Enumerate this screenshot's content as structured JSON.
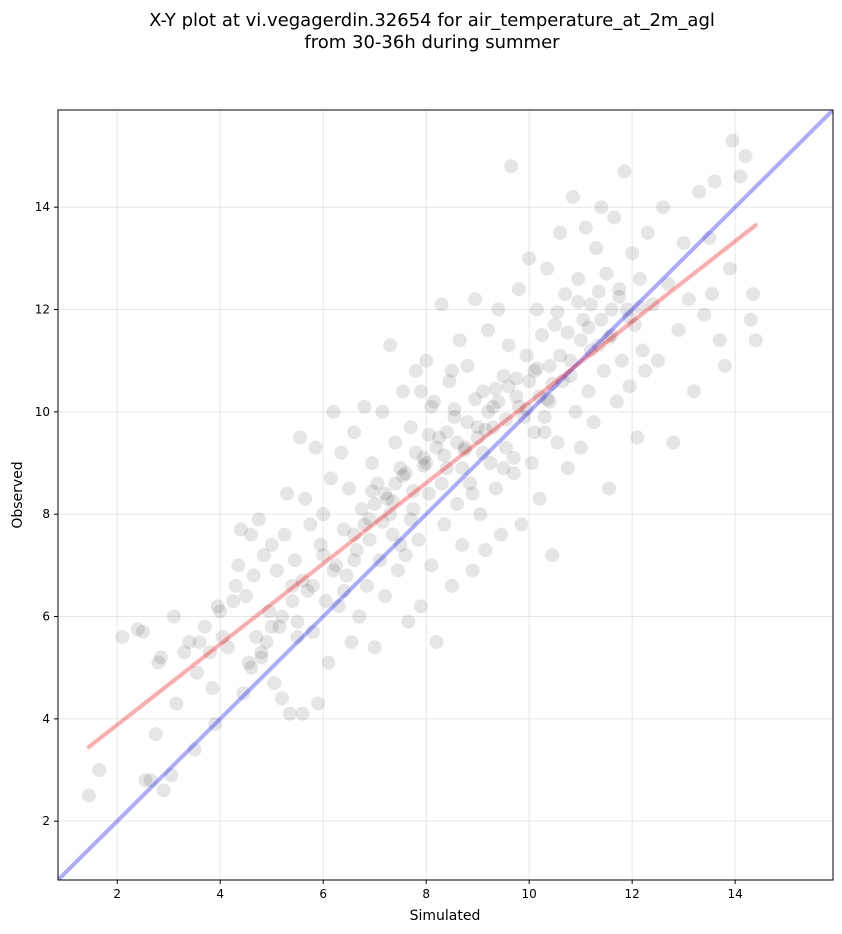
{
  "chart_data": {
    "type": "scatter",
    "title_line1": "X-Y plot at vi.vegagerdin.32654 for air_temperature_at_2m_agl",
    "title_line2": "from 30-36h during summer",
    "xlabel": "Simulated",
    "ylabel": "Observed",
    "xlim": [
      0.85,
      15.9
    ],
    "ylim": [
      0.85,
      15.9
    ],
    "xticks": [
      2,
      4,
      6,
      8,
      10,
      12,
      14
    ],
    "yticks": [
      2,
      4,
      6,
      8,
      10,
      12,
      14
    ],
    "grid": true,
    "point_color": "#000000",
    "point_opacity": 0.1,
    "identity_line": {
      "color": "#0000ff",
      "opacity": 0.33,
      "from": [
        0.85,
        0.85
      ],
      "to": [
        15.9,
        15.9
      ]
    },
    "regression_line": {
      "color": "#ff0000",
      "opacity": 0.33,
      "from": [
        1.45,
        3.45
      ],
      "to": [
        14.4,
        13.65
      ]
    },
    "points": [
      [
        1.45,
        2.5
      ],
      [
        1.65,
        3.0
      ],
      [
        2.1,
        5.6
      ],
      [
        2.4,
        5.75
      ],
      [
        2.5,
        5.7
      ],
      [
        2.55,
        2.8
      ],
      [
        2.65,
        2.8
      ],
      [
        2.75,
        3.7
      ],
      [
        2.8,
        5.1
      ],
      [
        2.85,
        5.2
      ],
      [
        2.9,
        2.6
      ],
      [
        3.05,
        2.9
      ],
      [
        3.1,
        6.0
      ],
      [
        3.15,
        4.3
      ],
      [
        3.3,
        5.3
      ],
      [
        3.4,
        5.5
      ],
      [
        3.5,
        3.4
      ],
      [
        3.55,
        4.9
      ],
      [
        3.6,
        5.5
      ],
      [
        3.7,
        5.8
      ],
      [
        3.8,
        5.3
      ],
      [
        3.85,
        4.6
      ],
      [
        3.9,
        3.9
      ],
      [
        3.95,
        6.2
      ],
      [
        4.0,
        6.1
      ],
      [
        4.05,
        5.6
      ],
      [
        4.15,
        5.4
      ],
      [
        4.25,
        6.3
      ],
      [
        4.3,
        6.6
      ],
      [
        4.35,
        7.0
      ],
      [
        4.4,
        7.7
      ],
      [
        4.45,
        4.5
      ],
      [
        4.5,
        6.4
      ],
      [
        4.55,
        5.1
      ],
      [
        4.6,
        7.6
      ],
      [
        4.65,
        6.8
      ],
      [
        4.7,
        5.6
      ],
      [
        4.75,
        7.9
      ],
      [
        4.8,
        5.3
      ],
      [
        4.85,
        7.2
      ],
      [
        4.9,
        5.5
      ],
      [
        4.95,
        6.1
      ],
      [
        5.0,
        7.4
      ],
      [
        5.05,
        4.7
      ],
      [
        5.1,
        6.9
      ],
      [
        5.15,
        5.8
      ],
      [
        5.2,
        4.4
      ],
      [
        5.25,
        7.6
      ],
      [
        5.3,
        8.4
      ],
      [
        5.35,
        4.1
      ],
      [
        5.4,
        6.6
      ],
      [
        5.45,
        7.1
      ],
      [
        5.5,
        5.9
      ],
      [
        5.55,
        9.5
      ],
      [
        5.6,
        4.1
      ],
      [
        5.65,
        8.3
      ],
      [
        5.7,
        6.5
      ],
      [
        5.75,
        7.8
      ],
      [
        5.8,
        5.7
      ],
      [
        5.85,
        9.3
      ],
      [
        5.9,
        4.3
      ],
      [
        5.95,
        7.4
      ],
      [
        6.0,
        8.0
      ],
      [
        6.05,
        6.3
      ],
      [
        6.1,
        5.1
      ],
      [
        6.15,
        8.7
      ],
      [
        6.2,
        10.0
      ],
      [
        6.25,
        7.0
      ],
      [
        6.3,
        6.2
      ],
      [
        6.35,
        9.2
      ],
      [
        6.4,
        7.7
      ],
      [
        6.45,
        6.8
      ],
      [
        6.5,
        8.5
      ],
      [
        6.55,
        5.5
      ],
      [
        6.6,
        9.6
      ],
      [
        6.65,
        7.3
      ],
      [
        6.7,
        6.0
      ],
      [
        6.75,
        8.1
      ],
      [
        6.8,
        10.1
      ],
      [
        6.85,
        6.6
      ],
      [
        6.9,
        7.9
      ],
      [
        6.95,
        9.0
      ],
      [
        7.0,
        5.4
      ],
      [
        7.05,
        8.6
      ],
      [
        7.1,
        7.1
      ],
      [
        7.15,
        10.0
      ],
      [
        7.2,
        6.4
      ],
      [
        7.25,
        8.3
      ],
      [
        7.3,
        11.3
      ],
      [
        7.35,
        7.6
      ],
      [
        7.4,
        9.4
      ],
      [
        7.45,
        6.9
      ],
      [
        7.5,
        8.9
      ],
      [
        7.55,
        10.4
      ],
      [
        7.6,
        7.2
      ],
      [
        7.65,
        5.9
      ],
      [
        7.7,
        9.7
      ],
      [
        7.75,
        8.1
      ],
      [
        7.8,
        10.8
      ],
      [
        7.85,
        7.5
      ],
      [
        7.9,
        6.2
      ],
      [
        7.95,
        9.1
      ],
      [
        8.0,
        11.0
      ],
      [
        8.05,
        8.4
      ],
      [
        8.1,
        7.0
      ],
      [
        8.15,
        10.2
      ],
      [
        8.2,
        5.5
      ],
      [
        8.25,
        9.5
      ],
      [
        8.3,
        12.1
      ],
      [
        8.35,
        7.8
      ],
      [
        8.4,
        8.9
      ],
      [
        8.45,
        10.6
      ],
      [
        8.5,
        6.6
      ],
      [
        8.55,
        9.9
      ],
      [
        8.6,
        8.2
      ],
      [
        8.65,
        11.4
      ],
      [
        8.7,
        7.4
      ],
      [
        8.75,
        9.3
      ],
      [
        8.8,
        10.9
      ],
      [
        8.85,
        8.6
      ],
      [
        8.9,
        6.9
      ],
      [
        8.95,
        12.2
      ],
      [
        9.0,
        9.7
      ],
      [
        9.05,
        8.0
      ],
      [
        9.1,
        10.4
      ],
      [
        9.15,
        7.3
      ],
      [
        9.2,
        11.6
      ],
      [
        9.25,
        9.0
      ],
      [
        9.3,
        10.1
      ],
      [
        9.35,
        8.5
      ],
      [
        9.4,
        12.0
      ],
      [
        9.45,
        7.6
      ],
      [
        9.5,
        10.7
      ],
      [
        9.55,
        9.3
      ],
      [
        9.6,
        11.3
      ],
      [
        9.65,
        14.8
      ],
      [
        9.7,
        8.8
      ],
      [
        9.75,
        10.3
      ],
      [
        9.8,
        12.4
      ],
      [
        9.85,
        7.8
      ],
      [
        9.9,
        9.9
      ],
      [
        9.95,
        11.1
      ],
      [
        10.0,
        13.0
      ],
      [
        10.05,
        9.0
      ],
      [
        10.1,
        10.8
      ],
      [
        10.15,
        12.0
      ],
      [
        10.2,
        8.3
      ],
      [
        10.25,
        11.5
      ],
      [
        10.3,
        9.6
      ],
      [
        10.35,
        12.8
      ],
      [
        10.4,
        10.2
      ],
      [
        10.45,
        7.2
      ],
      [
        10.5,
        11.7
      ],
      [
        10.55,
        9.4
      ],
      [
        10.6,
        13.5
      ],
      [
        10.65,
        10.6
      ],
      [
        10.7,
        12.3
      ],
      [
        10.75,
        8.9
      ],
      [
        10.8,
        11.0
      ],
      [
        10.85,
        14.2
      ],
      [
        10.9,
        10.0
      ],
      [
        10.95,
        12.6
      ],
      [
        11.0,
        9.3
      ],
      [
        11.05,
        11.8
      ],
      [
        11.1,
        13.6
      ],
      [
        11.15,
        10.4
      ],
      [
        11.2,
        12.1
      ],
      [
        11.25,
        9.8
      ],
      [
        11.3,
        13.2
      ],
      [
        11.35,
        11.3
      ],
      [
        11.4,
        14.0
      ],
      [
        11.45,
        10.8
      ],
      [
        11.5,
        12.7
      ],
      [
        11.55,
        8.5
      ],
      [
        11.6,
        11.5
      ],
      [
        11.65,
        13.8
      ],
      [
        11.7,
        10.2
      ],
      [
        11.75,
        12.4
      ],
      [
        11.8,
        11.0
      ],
      [
        11.85,
        14.7
      ],
      [
        11.9,
        12.0
      ],
      [
        11.95,
        10.5
      ],
      [
        12.0,
        13.1
      ],
      [
        12.05,
        11.7
      ],
      [
        12.1,
        9.5
      ],
      [
        12.15,
        12.6
      ],
      [
        12.2,
        11.2
      ],
      [
        12.25,
        10.8
      ],
      [
        12.3,
        13.5
      ],
      [
        12.4,
        12.1
      ],
      [
        12.5,
        11.0
      ],
      [
        12.6,
        14.0
      ],
      [
        12.7,
        12.5
      ],
      [
        12.8,
        9.4
      ],
      [
        12.9,
        11.6
      ],
      [
        13.0,
        13.3
      ],
      [
        13.1,
        12.2
      ],
      [
        13.2,
        10.4
      ],
      [
        13.3,
        14.3
      ],
      [
        13.4,
        11.9
      ],
      [
        13.5,
        13.4
      ],
      [
        13.55,
        12.3
      ],
      [
        13.6,
        14.5
      ],
      [
        13.7,
        11.4
      ],
      [
        13.8,
        10.9
      ],
      [
        13.9,
        12.8
      ],
      [
        13.95,
        15.3
      ],
      [
        14.1,
        14.6
      ],
      [
        14.2,
        15.0
      ],
      [
        14.3,
        11.8
      ],
      [
        14.35,
        12.3
      ],
      [
        14.4,
        11.4
      ],
      [
        8.0,
        9.0
      ],
      [
        8.2,
        9.3
      ],
      [
        8.4,
        9.6
      ],
      [
        8.6,
        9.4
      ],
      [
        8.8,
        9.8
      ],
      [
        9.0,
        9.5
      ],
      [
        9.2,
        10.0
      ],
      [
        7.6,
        8.8
      ],
      [
        7.8,
        9.2
      ],
      [
        7.4,
        8.6
      ],
      [
        7.2,
        8.4
      ],
      [
        7.0,
        8.2
      ],
      [
        6.8,
        7.8
      ],
      [
        6.6,
        7.6
      ],
      [
        9.4,
        10.2
      ],
      [
        9.6,
        10.5
      ],
      [
        9.8,
        10.1
      ],
      [
        10.0,
        10.6
      ],
      [
        10.2,
        10.3
      ],
      [
        10.4,
        10.9
      ],
      [
        10.6,
        11.1
      ],
      [
        10.8,
        10.7
      ],
      [
        11.0,
        11.4
      ],
      [
        11.2,
        11.2
      ],
      [
        11.4,
        11.8
      ],
      [
        11.6,
        12.0
      ],
      [
        8.3,
        8.6
      ],
      [
        8.7,
        8.9
      ],
      [
        9.1,
        9.2
      ],
      [
        9.3,
        9.7
      ],
      [
        8.1,
        10.1
      ],
      [
        7.9,
        10.4
      ],
      [
        8.5,
        10.8
      ],
      [
        7.7,
        7.9
      ],
      [
        7.5,
        7.4
      ],
      [
        8.9,
        8.4
      ],
      [
        9.5,
        8.9
      ],
      [
        9.7,
        9.1
      ],
      [
        10.1,
        9.6
      ],
      [
        10.3,
        9.9
      ],
      [
        6.4,
        6.5
      ],
      [
        6.2,
        6.9
      ],
      [
        6.0,
        7.2
      ],
      [
        5.8,
        6.6
      ],
      [
        6.6,
        7.1
      ],
      [
        6.9,
        7.5
      ],
      [
        7.3,
        8.0
      ],
      [
        5.4,
        6.3
      ],
      [
        5.6,
        6.7
      ],
      [
        5.2,
        6.0
      ],
      [
        5.0,
        5.8
      ],
      [
        4.8,
        5.2
      ],
      [
        4.6,
        5.0
      ],
      [
        5.5,
        5.6
      ],
      [
        8.05,
        9.55
      ],
      [
        8.35,
        9.15
      ],
      [
        8.55,
        10.05
      ],
      [
        8.75,
        9.25
      ],
      [
        8.95,
        10.25
      ],
      [
        9.15,
        9.65
      ],
      [
        9.35,
        10.45
      ],
      [
        9.55,
        9.85
      ],
      [
        9.75,
        10.65
      ],
      [
        9.95,
        10.05
      ],
      [
        10.15,
        10.85
      ],
      [
        10.35,
        10.25
      ],
      [
        7.35,
        8.25
      ],
      [
        7.55,
        8.75
      ],
      [
        7.75,
        8.45
      ],
      [
        7.95,
        8.95
      ],
      [
        7.15,
        7.85
      ],
      [
        6.95,
        8.45
      ],
      [
        11.15,
        11.65
      ],
      [
        11.35,
        12.35
      ],
      [
        11.55,
        11.45
      ],
      [
        11.75,
        12.25
      ],
      [
        11.95,
        11.85
      ],
      [
        12.15,
        12.05
      ],
      [
        10.55,
        11.95
      ],
      [
        10.75,
        11.55
      ],
      [
        10.95,
        12.15
      ],
      [
        10.45,
        10.55
      ]
    ]
  }
}
